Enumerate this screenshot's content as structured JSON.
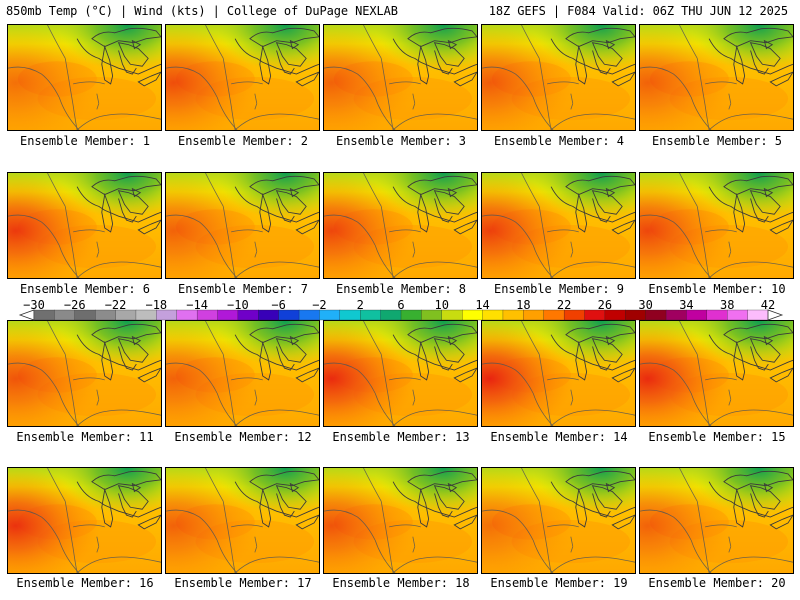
{
  "header": {
    "left": "850mb Temp (°C) | Wind (kts) | College of DuPage NEXLAB",
    "right": "18Z GEFS | F084 Valid: 06Z THU JUN 12 2025"
  },
  "panels": [
    {
      "label": "Ensemble Member: 1",
      "hot": 0.2
    },
    {
      "label": "Ensemble Member: 2",
      "hot": 0.45
    },
    {
      "label": "Ensemble Member: 3",
      "hot": 0.3
    },
    {
      "label": "Ensemble Member: 4",
      "hot": 0.35
    },
    {
      "label": "Ensemble Member: 5",
      "hot": 0.3
    },
    {
      "label": "Ensemble Member: 6",
      "hot": 0.6
    },
    {
      "label": "Ensemble Member: 7",
      "hot": 0.3
    },
    {
      "label": "Ensemble Member: 8",
      "hot": 0.5
    },
    {
      "label": "Ensemble Member: 9",
      "hot": 0.55
    },
    {
      "label": "Ensemble Member: 10",
      "hot": 0.5
    },
    {
      "label": "Ensemble Member: 11",
      "hot": 0.4
    },
    {
      "label": "Ensemble Member: 12",
      "hot": 0.3
    },
    {
      "label": "Ensemble Member: 13",
      "hot": 0.7
    },
    {
      "label": "Ensemble Member: 14",
      "hot": 0.75
    },
    {
      "label": "Ensemble Member: 15",
      "hot": 0.7
    },
    {
      "label": "Ensemble Member: 16",
      "hot": 0.65
    },
    {
      "label": "Ensemble Member: 17",
      "hot": 0.3
    },
    {
      "label": "Ensemble Member: 18",
      "hot": 0.4
    },
    {
      "label": "Ensemble Member: 19",
      "hot": 0.2
    },
    {
      "label": "Ensemble Member: 20",
      "hot": 0.3
    }
  ],
  "colorbar": {
    "labels": [
      "−30",
      "−26",
      "−22",
      "−18",
      "−14",
      "−10",
      "−6",
      "−2",
      "2",
      "6",
      "10",
      "14",
      "18",
      "22",
      "26",
      "30",
      "34",
      "38",
      "42"
    ],
    "colors": [
      "#707070",
      "#8a8a8a",
      "#6e6e6e",
      "#8c8c8c",
      "#a8a8a8",
      "#bdbdbd",
      "#c4a0dc",
      "#e070f0",
      "#d040e0",
      "#b018d8",
      "#7000c8",
      "#3800b8",
      "#1040d8",
      "#1878f0",
      "#20b0f8",
      "#10c8d0",
      "#10c0a0",
      "#10a870",
      "#38b030",
      "#80c020",
      "#c8dc10",
      "#ffff00",
      "#ffe000",
      "#ffc000",
      "#ffa000",
      "#ff7800",
      "#f04000",
      "#e01010",
      "#c00000",
      "#a00000",
      "#900020",
      "#a00060",
      "#c000a0",
      "#e030d0",
      "#f070f0",
      "#fcbcfc"
    ]
  }
}
